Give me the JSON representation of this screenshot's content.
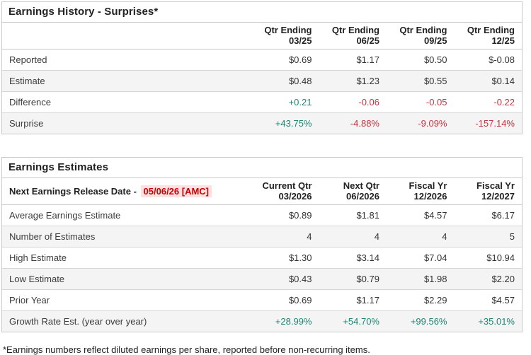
{
  "history": {
    "title": "Earnings History - Surprises*",
    "columns": [
      {
        "line1": "Qtr Ending",
        "line2": "03/25"
      },
      {
        "line1": "Qtr Ending",
        "line2": "06/25"
      },
      {
        "line1": "Qtr Ending",
        "line2": "09/25"
      },
      {
        "line1": "Qtr Ending",
        "line2": "12/25"
      }
    ],
    "rows": [
      {
        "label": "Reported",
        "values": [
          "$0.69",
          "$1.17",
          "$0.50",
          "$-0.08"
        ]
      },
      {
        "label": "Estimate",
        "values": [
          "$0.48",
          "$1.23",
          "$0.55",
          "$0.14"
        ]
      },
      {
        "label": "Difference",
        "values": [
          "+0.21",
          "-0.06",
          "-0.05",
          "-0.22"
        ]
      },
      {
        "label": "Surprise",
        "values": [
          "+43.75%",
          "-4.88%",
          "-9.09%",
          "-157.14%"
        ]
      }
    ]
  },
  "estimates": {
    "title": "Earnings Estimates",
    "release_label": "Next Earnings Release Date -",
    "release_date": "05/06/26 [AMC]",
    "columns": [
      {
        "line1": "Current Qtr",
        "line2": "03/2026"
      },
      {
        "line1": "Next Qtr",
        "line2": "06/2026"
      },
      {
        "line1": "Fiscal Yr",
        "line2": "12/2026"
      },
      {
        "line1": "Fiscal Yr",
        "line2": "12/2027"
      }
    ],
    "rows": [
      {
        "label": "Average Earnings Estimate",
        "values": [
          "$0.89",
          "$1.81",
          "$4.57",
          "$6.17"
        ]
      },
      {
        "label": "Number of Estimates",
        "values": [
          "4",
          "4",
          "4",
          "5"
        ]
      },
      {
        "label": "High Estimate",
        "values": [
          "$1.30",
          "$3.14",
          "$7.04",
          "$10.94"
        ]
      },
      {
        "label": "Low Estimate",
        "values": [
          "$0.43",
          "$0.79",
          "$1.98",
          "$2.20"
        ]
      },
      {
        "label": "Prior Year",
        "values": [
          "$0.69",
          "$1.17",
          "$2.29",
          "$4.57"
        ]
      },
      {
        "label": "Growth Rate Est. (year over year)",
        "values": [
          "+28.99%",
          "+54.70%",
          "+99.56%",
          "+35.01%"
        ]
      }
    ]
  },
  "footnote": "*Earnings numbers reflect diluted earnings per share, reported before non-recurring items.",
  "colors": {
    "positive": "#1e8573",
    "negative": "#c2343f",
    "release_date_text": "#cc0000",
    "release_date_bg": "#fbe1e1"
  }
}
